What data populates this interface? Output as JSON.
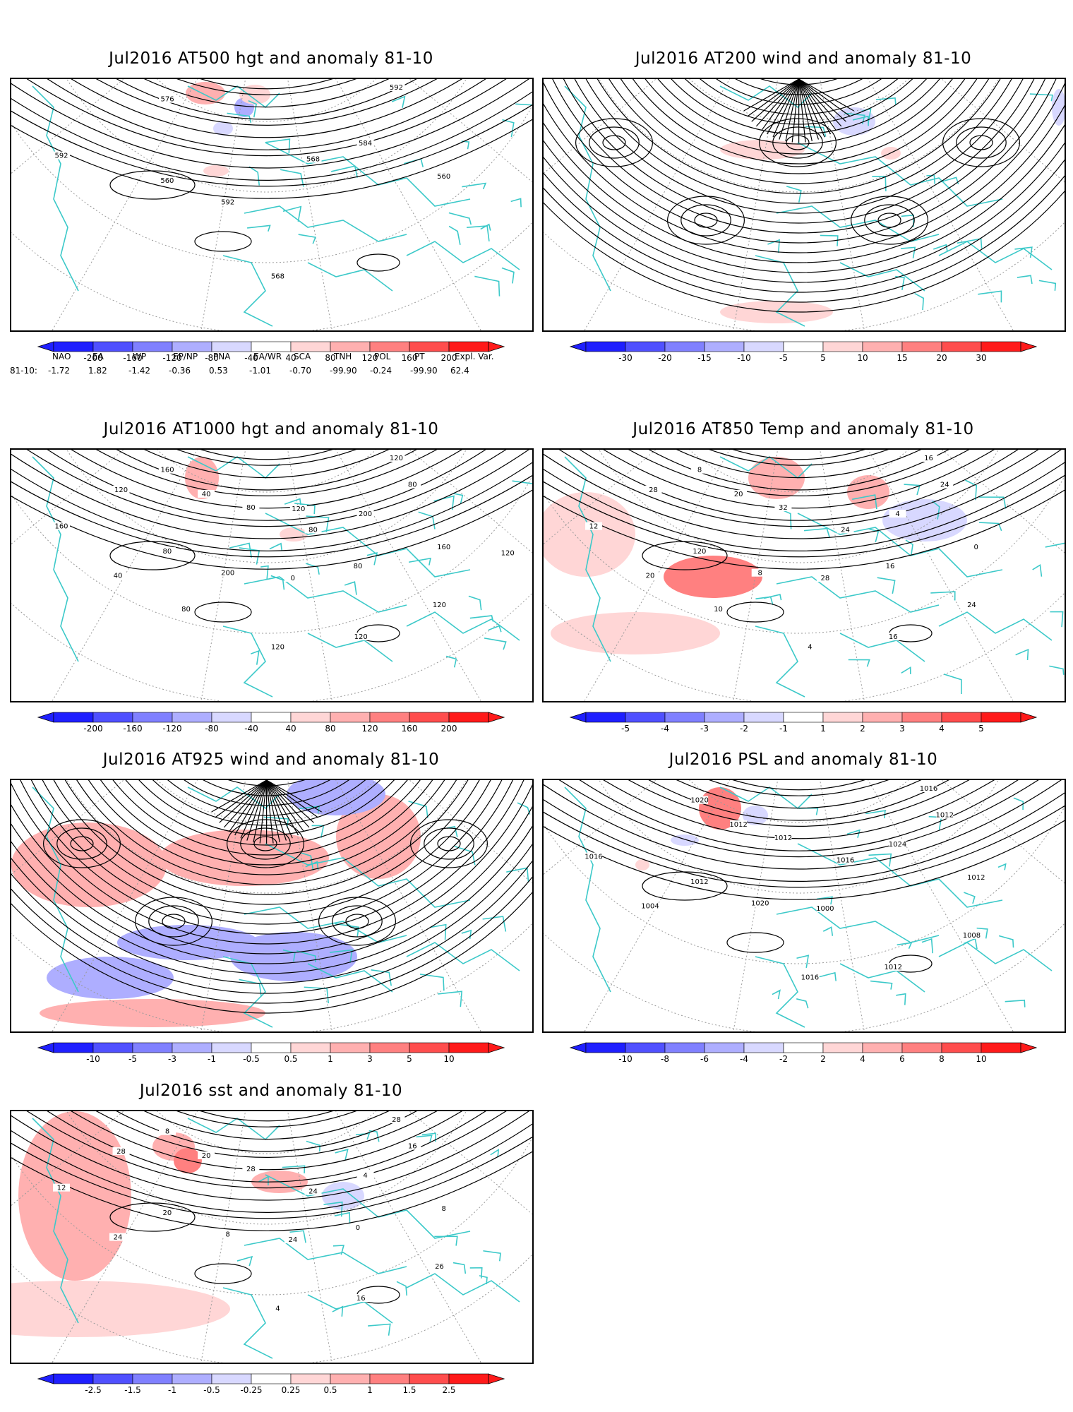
{
  "panels": [
    {
      "title": "Jul2016 AT500 hgt and anomaly 81-10",
      "kind": "contour",
      "contour_labels": [
        "592",
        "568",
        "560",
        "560",
        "568",
        "576",
        "584",
        "592",
        "592"
      ],
      "colorbar": {
        "ticks": [
          "-200",
          "-160",
          "-120",
          "-80",
          "-40",
          "40",
          "80",
          "120",
          "160",
          "200"
        ]
      },
      "blobs": [
        {
          "sign": 1,
          "level": 2
        },
        {
          "sign": -1,
          "level": 2
        },
        {
          "sign": 1,
          "level": 1
        },
        {
          "sign": 1,
          "level": 1
        },
        {
          "sign": -1,
          "level": 1
        }
      ]
    },
    {
      "title": "Jul2016 AT200 wind and anomaly 81-10",
      "kind": "stream",
      "contour_labels": [],
      "colorbar": {
        "ticks": [
          "-30",
          "-20",
          "-15",
          "-10",
          "-5",
          "5",
          "10",
          "15",
          "20",
          "30"
        ]
      },
      "blobs": [
        {
          "sign": 1,
          "level": 1
        },
        {
          "sign": 1,
          "level": 1
        },
        {
          "sign": -1,
          "level": 1
        },
        {
          "sign": 1,
          "level": 1
        },
        {
          "sign": -1,
          "level": 1
        }
      ]
    },
    {
      "title": "Jul2016 AT1000 hgt and anomaly 81-10",
      "kind": "contour",
      "contour_labels": [
        "120",
        "80",
        "80",
        "160",
        "120",
        "160",
        "200",
        "200",
        "160",
        "120",
        "40",
        "80",
        "0",
        "40",
        "120",
        "80",
        "120",
        "80",
        "80",
        "120",
        "120"
      ],
      "colorbar": {
        "ticks": [
          "-200",
          "-160",
          "-120",
          "-80",
          "-40",
          "40",
          "80",
          "120",
          "160",
          "200"
        ]
      },
      "blobs": [
        {
          "sign": 1,
          "level": 2
        },
        {
          "sign": 1,
          "level": 1
        }
      ]
    },
    {
      "title": "Jul2016 AT850 Temp and anomaly 81-10",
      "kind": "contour",
      "contour_labels": [
        "16",
        "24",
        "120",
        "0",
        "4",
        "8",
        "4",
        "8",
        "12",
        "16",
        "20",
        "24",
        "28",
        "20",
        "24",
        "32",
        "28",
        "16",
        "10"
      ],
      "colorbar": {
        "ticks": [
          "-5",
          "-4",
          "-3",
          "-2",
          "-1",
          "1",
          "2",
          "3",
          "4",
          "5"
        ]
      },
      "blobs": [
        {
          "sign": 1,
          "level": 1
        },
        {
          "sign": 1,
          "level": 3
        },
        {
          "sign": 1,
          "level": 2
        },
        {
          "sign": 1,
          "level": 2
        },
        {
          "sign": -1,
          "level": 1
        },
        {
          "sign": 1,
          "level": 1
        }
      ]
    },
    {
      "title": "Jul2016 AT925 wind and anomaly 81-10",
      "kind": "stream",
      "contour_labels": [],
      "colorbar": {
        "ticks": [
          "-10",
          "-5",
          "-3",
          "-1",
          "-0.5",
          "0.5",
          "1",
          "3",
          "5",
          "10"
        ]
      },
      "blobs": [
        {
          "sign": 1,
          "level": 2
        },
        {
          "sign": -1,
          "level": 2
        },
        {
          "sign": 1,
          "level": 2
        },
        {
          "sign": -1,
          "level": 2
        },
        {
          "sign": 1,
          "level": 2
        },
        {
          "sign": -1,
          "level": 2
        },
        {
          "sign": 1,
          "level": 2
        },
        {
          "sign": -1,
          "level": 2
        }
      ]
    },
    {
      "title": "Jul2016 PSL and anomaly 81-10",
      "kind": "contour",
      "contour_labels": [
        "1016",
        "1016",
        "1012",
        "1012",
        "1016",
        "1020",
        "1024",
        "1020",
        "1016",
        "1012",
        "1012",
        "1012",
        "1000",
        "1004",
        "1008",
        "1012"
      ],
      "colorbar": {
        "ticks": [
          "-10",
          "-8",
          "-6",
          "-4",
          "-2",
          "2",
          "4",
          "6",
          "8",
          "10"
        ]
      },
      "blobs": [
        {
          "sign": 1,
          "level": 3
        },
        {
          "sign": -1,
          "level": 1
        },
        {
          "sign": -1,
          "level": 1
        },
        {
          "sign": 1,
          "level": 1
        }
      ]
    },
    {
      "title": "Jul2016 sst and anomaly 81-10",
      "kind": "contour",
      "contour_labels": [
        "28",
        "24",
        "20",
        "8",
        "4",
        "8",
        "4",
        "8",
        "12",
        "16",
        "20",
        "16",
        "24",
        "24",
        "26",
        "28",
        "28",
        "0"
      ],
      "colorbar": {
        "ticks": [
          "-2.5",
          "-1.5",
          "-1",
          "-0.5",
          "-0.25",
          "0.25",
          "0.5",
          "1",
          "1.5",
          "2.5"
        ]
      },
      "blobs": [
        {
          "sign": 1,
          "level": 2
        },
        {
          "sign": 1,
          "level": 2
        },
        {
          "sign": 1,
          "level": 3
        },
        {
          "sign": 1,
          "level": 2
        },
        {
          "sign": -1,
          "level": 1
        },
        {
          "sign": 1,
          "level": 1
        }
      ]
    }
  ],
  "teleconnection": {
    "headers": [
      "NAO",
      "EA",
      "WP",
      "EP/NP",
      "PNA",
      "EA/WR",
      "SCA",
      "TNH",
      "POL",
      "PT",
      "Expl. Var."
    ],
    "row_label": "81-10:",
    "values": [
      "-1.72",
      "1.82",
      "-1.42",
      "-0.36",
      "0.53",
      "-1.01",
      "-0.70",
      "-99.90",
      "-0.24",
      "-99.90",
      "62.4"
    ]
  },
  "colors": {
    "coast": "#3cc9c9",
    "graticule": "#9a9a9a",
    "contour": "#000000",
    "pos": [
      "#ffd6d6",
      "#ffb0b0",
      "#ff8080",
      "#ff4d4d",
      "#ff1a1a"
    ],
    "neg": [
      "#d8d8ff",
      "#aeaeff",
      "#8080ff",
      "#5050ff",
      "#1f1fff"
    ]
  }
}
